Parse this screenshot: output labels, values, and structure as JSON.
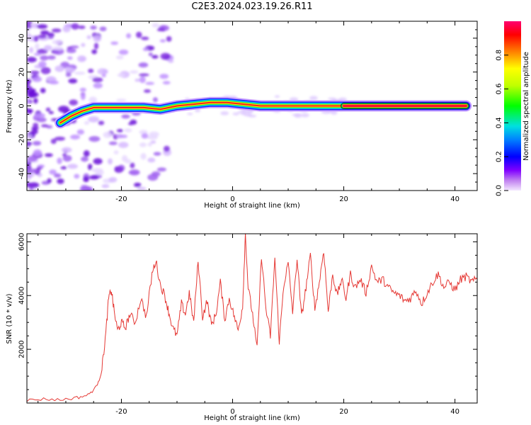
{
  "title": "C2E3.2024.023.19.26.R11",
  "colors": {
    "snr_line": "#e53935",
    "background_blob": "#b070f0",
    "axis": "#000000"
  },
  "chart_data": [
    {
      "type": "heatmap",
      "name": "spectrogram",
      "xlabel": "Height of straight line (km)",
      "ylabel": "Frequency (Hz)",
      "xlim": [
        -37,
        44
      ],
      "ylim": [
        -50,
        50
      ],
      "xticks": [
        -20,
        0,
        20,
        40
      ],
      "xtick_labels": [
        "-20",
        "0",
        "20",
        "40"
      ],
      "yticks": [
        -40,
        -20,
        0,
        20,
        40
      ],
      "ytick_labels": [
        "-40",
        "-20",
        "0",
        "20",
        "40"
      ],
      "ridge": {
        "x": [
          -31,
          -29,
          -27,
          -25,
          -22,
          -19,
          -16,
          -13,
          -10,
          -7,
          -4,
          -1,
          2,
          5,
          8,
          11,
          14,
          17,
          20,
          25,
          30,
          35,
          42
        ],
        "y": [
          -10,
          -6,
          -3,
          -1,
          -1,
          -1,
          -1,
          -2,
          0,
          1,
          2,
          2,
          1,
          0,
          0,
          0,
          0,
          0,
          0,
          0,
          0,
          0,
          0
        ]
      },
      "colorbar": {
        "label": "Normalized spectral amplitude",
        "range": [
          0,
          1
        ],
        "ticks": [
          0.0,
          0.2,
          0.4,
          0.6,
          0.8
        ],
        "tick_labels": [
          "0.0",
          "0.2",
          "0.4",
          "0.6",
          "0.8"
        ]
      }
    },
    {
      "type": "line",
      "name": "snr",
      "xlabel": "Height of straight line (km)",
      "ylabel": "SNR (10 * v/v)",
      "xlim": [
        -37,
        44
      ],
      "ylim": [
        0,
        6300
      ],
      "xticks": [
        -20,
        0,
        20,
        40
      ],
      "xtick_labels": [
        "-20",
        "0",
        "20",
        "40"
      ],
      "yticks": [
        2000,
        4000,
        6000
      ],
      "ytick_labels": [
        "2000",
        "4000",
        "6000"
      ],
      "x": [
        -37,
        -34,
        -31,
        -28,
        -26,
        -24.5,
        -23.5,
        -22.8,
        -22.3,
        -21.8,
        -21.3,
        -20.7,
        -20,
        -19.3,
        -18.5,
        -17.5,
        -16.5,
        -15.5,
        -14.5,
        -13.8,
        -13,
        -12.2,
        -11.5,
        -10.8,
        -10,
        -9.2,
        -8.5,
        -7.8,
        -7,
        -6.2,
        -5.4,
        -4.6,
        -3.8,
        -3,
        -2.2,
        -1.4,
        -0.6,
        0.2,
        1,
        1.8,
        2.3,
        2.8,
        3.6,
        4.4,
        5.2,
        6,
        6.8,
        7.6,
        8.4,
        9.2,
        10,
        10.8,
        11.6,
        12.4,
        13.2,
        14,
        14.8,
        15.6,
        16.4,
        17.2,
        18,
        18.8,
        19.6,
        20.4,
        21.2,
        22,
        23,
        24,
        25,
        26,
        27,
        28,
        29,
        30,
        31,
        32,
        33,
        34,
        35,
        36,
        37,
        38,
        39,
        40,
        41,
        42,
        43,
        44
      ],
      "y": [
        100,
        150,
        120,
        200,
        300,
        600,
        1300,
        2600,
        3900,
        4200,
        3400,
        2700,
        3000,
        2800,
        3300,
        3000,
        3900,
        3200,
        4800,
        5300,
        4400,
        4000,
        3400,
        2800,
        2500,
        3700,
        3300,
        4100,
        3000,
        5300,
        3200,
        3800,
        2900,
        3300,
        4500,
        3100,
        3900,
        3300,
        2700,
        3600,
        6300,
        4300,
        3300,
        2000,
        5500,
        3500,
        2500,
        5400,
        2300,
        4400,
        5200,
        3400,
        5400,
        3200,
        4300,
        5500,
        3500,
        4500,
        5700,
        3400,
        4800,
        4000,
        4600,
        3900,
        4800,
        4300,
        4600,
        4100,
        5100,
        4500,
        4600,
        4300,
        4100,
        4000,
        3800,
        3900,
        4200,
        3700,
        4100,
        4500,
        4800,
        4300,
        4500,
        4200,
        4600,
        4700,
        4500,
        4600
      ]
    }
  ]
}
